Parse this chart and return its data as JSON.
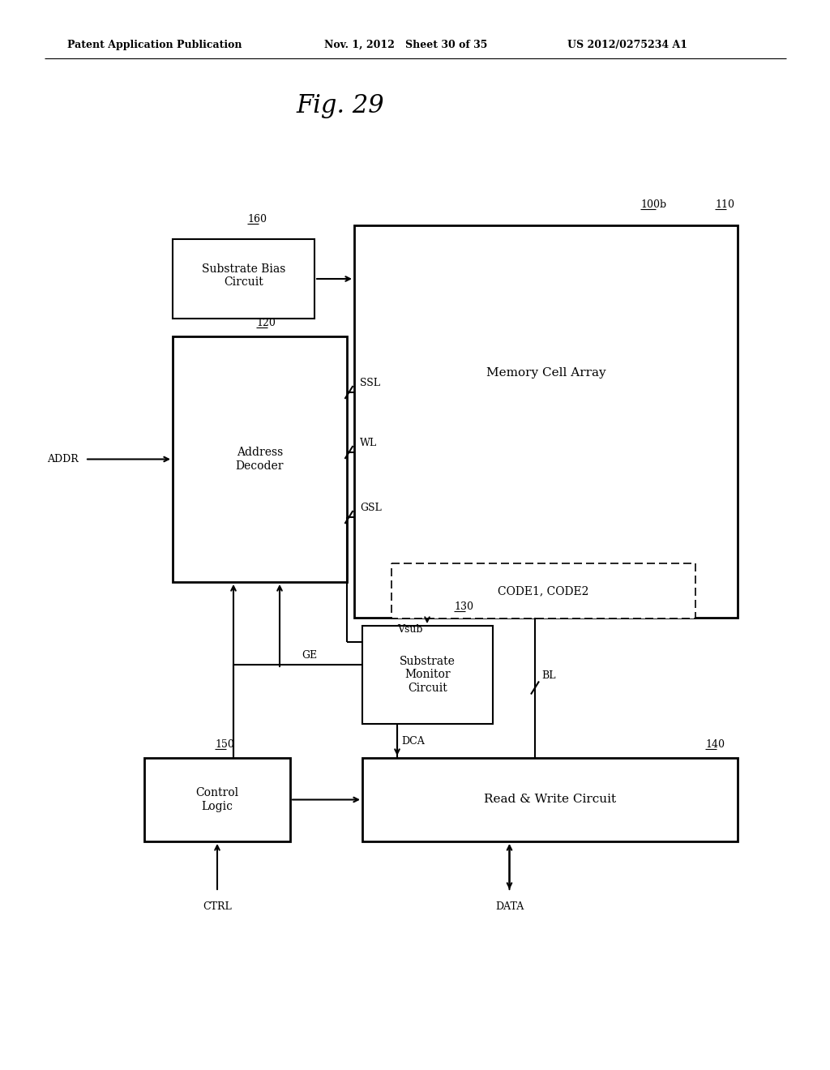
{
  "bg_color": "#ffffff",
  "header_left": "Patent Application Publication",
  "header_mid": "Nov. 1, 2012   Sheet 30 of 35",
  "header_right": "US 2012/0275234 A1",
  "fig_title": "Fig. 29"
}
